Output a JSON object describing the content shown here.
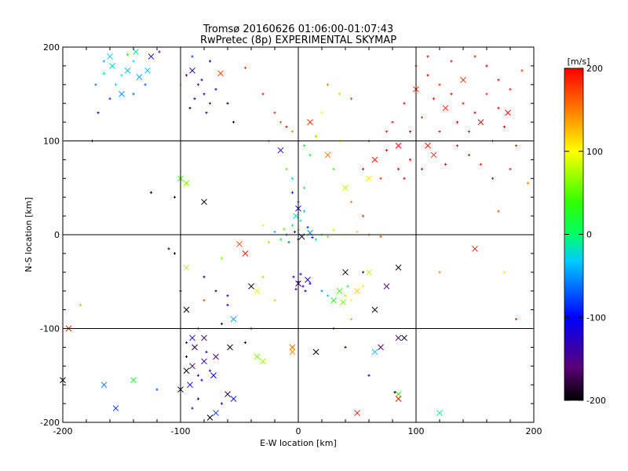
{
  "chart_data": {
    "type": "scatter",
    "title": "Tromsø 20160626 01:06:00-01:07:43",
    "subtitle": "RwPretec (8p) EXPERIMENTAL SKYMAP",
    "xlabel": "E-W location [km]",
    "ylabel": "N-S location [km]",
    "xlim": [
      -200,
      200
    ],
    "ylim": [
      -200,
      200
    ],
    "xticks": [
      "-200",
      "-100",
      "0",
      "100",
      "200"
    ],
    "yticks": [
      "-200",
      "-100",
      "0",
      "100",
      "200"
    ],
    "grid": true,
    "colorbar": {
      "label": "[m/s]",
      "range": [
        -200,
        200
      ],
      "ticks": [
        "-200",
        "-100",
        "0",
        "100",
        "200"
      ]
    },
    "markers": {
      "small": "plus",
      "large": "x"
    },
    "points": [
      [
        -165,
        185,
        -40,
        0
      ],
      [
        -160,
        190,
        -30,
        1
      ],
      [
        -158,
        180,
        -20,
        1
      ],
      [
        -150,
        170,
        -10,
        0
      ],
      [
        -145,
        175,
        -35,
        1
      ],
      [
        -140,
        185,
        -25,
        0
      ],
      [
        -135,
        168,
        -45,
        1
      ],
      [
        -155,
        160,
        -15,
        0
      ],
      [
        -165,
        172,
        -5,
        0
      ],
      [
        -150,
        150,
        -50,
        1
      ],
      [
        -140,
        150,
        -60,
        0
      ],
      [
        -130,
        160,
        -70,
        0
      ],
      [
        -125,
        190,
        -120,
        1
      ],
      [
        -118,
        195,
        -150,
        0
      ],
      [
        -172,
        160,
        -60,
        0
      ],
      [
        -160,
        145,
        -80,
        0
      ],
      [
        -145,
        192,
        40,
        0
      ],
      [
        -170,
        130,
        -100,
        0
      ],
      [
        -128,
        175,
        -30,
        1
      ],
      [
        -138,
        195,
        -10,
        1
      ],
      [
        -90,
        175,
        -140,
        1
      ],
      [
        -85,
        160,
        -160,
        0
      ],
      [
        -80,
        150,
        -130,
        0
      ],
      [
        -75,
        140,
        -120,
        0
      ],
      [
        -88,
        145,
        -170,
        0
      ],
      [
        -82,
        165,
        -180,
        0
      ],
      [
        -70,
        155,
        -110,
        0
      ],
      [
        -95,
        170,
        -150,
        0
      ],
      [
        -78,
        130,
        -140,
        0
      ],
      [
        -66,
        172,
        170,
        1
      ],
      [
        -92,
        135,
        -190,
        0
      ],
      [
        -100,
        160,
        120,
        0
      ],
      [
        -60,
        140,
        -190,
        0
      ],
      [
        -75,
        185,
        -100,
        0
      ],
      [
        -90,
        190,
        -80,
        0
      ],
      [
        -45,
        178,
        180,
        0
      ],
      [
        -55,
        120,
        -200,
        0
      ],
      [
        100,
        180,
        190,
        0
      ],
      [
        110,
        170,
        200,
        0
      ],
      [
        120,
        160,
        180,
        0
      ],
      [
        130,
        150,
        200,
        0
      ],
      [
        140,
        140,
        190,
        0
      ],
      [
        150,
        130,
        200,
        0
      ],
      [
        160,
        150,
        180,
        0
      ],
      [
        170,
        165,
        200,
        0
      ],
      [
        180,
        155,
        190,
        0
      ],
      [
        125,
        135,
        185,
        1
      ],
      [
        135,
        120,
        200,
        0
      ],
      [
        145,
        110,
        190,
        0
      ],
      [
        155,
        120,
        200,
        1
      ],
      [
        165,
        100,
        180,
        0
      ],
      [
        175,
        115,
        200,
        0
      ],
      [
        185,
        95,
        190,
        0
      ],
      [
        115,
        145,
        200,
        0
      ],
      [
        105,
        125,
        180,
        0
      ],
      [
        95,
        110,
        200,
        0
      ],
      [
        85,
        95,
        190,
        1
      ],
      [
        75,
        90,
        200,
        0
      ],
      [
        65,
        80,
        185,
        1
      ],
      [
        55,
        70,
        200,
        0
      ],
      [
        95,
        80,
        190,
        0
      ],
      [
        105,
        70,
        200,
        0
      ],
      [
        115,
        85,
        180,
        1
      ],
      [
        125,
        75,
        200,
        0
      ],
      [
        135,
        95,
        190,
        0
      ],
      [
        145,
        85,
        200,
        0
      ],
      [
        155,
        75,
        180,
        0
      ],
      [
        165,
        60,
        200,
        0
      ],
      [
        180,
        70,
        190,
        0
      ],
      [
        90,
        60,
        200,
        0
      ],
      [
        70,
        60,
        180,
        0
      ],
      [
        60,
        100,
        200,
        0
      ],
      [
        80,
        120,
        190,
        0
      ],
      [
        90,
        140,
        200,
        0
      ],
      [
        100,
        155,
        180,
        1
      ],
      [
        110,
        190,
        200,
        0
      ],
      [
        150,
        190,
        190,
        0
      ],
      [
        160,
        180,
        200,
        0
      ],
      [
        140,
        165,
        185,
        1
      ],
      [
        130,
        185,
        200,
        0
      ],
      [
        190,
        175,
        180,
        0
      ],
      [
        120,
        110,
        195,
        0
      ],
      [
        100,
        100,
        200,
        0
      ],
      [
        110,
        95,
        190,
        1
      ],
      [
        85,
        70,
        200,
        0
      ],
      [
        75,
        110,
        180,
        0
      ],
      [
        170,
        135,
        200,
        0
      ],
      [
        178,
        130,
        195,
        1
      ],
      [
        45,
        145,
        170,
        0
      ],
      [
        35,
        150,
        120,
        0
      ],
      [
        25,
        160,
        150,
        0
      ],
      [
        -20,
        130,
        180,
        0
      ],
      [
        -15,
        120,
        160,
        0
      ],
      [
        -10,
        115,
        200,
        0
      ],
      [
        -5,
        110,
        140,
        0
      ],
      [
        0,
        100,
        80,
        0
      ],
      [
        5,
        95,
        40,
        0
      ],
      [
        10,
        85,
        20,
        0
      ],
      [
        15,
        105,
        60,
        0
      ],
      [
        20,
        130,
        100,
        0
      ],
      [
        -25,
        100,
        170,
        0
      ],
      [
        -30,
        150,
        190,
        0
      ],
      [
        10,
        120,
        180,
        1
      ],
      [
        -15,
        90,
        -130,
        1
      ],
      [
        -5,
        45,
        -90,
        0
      ],
      [
        0,
        35,
        -60,
        0
      ],
      [
        5,
        25,
        -40,
        0
      ],
      [
        -2,
        20,
        -20,
        1
      ],
      [
        2,
        15,
        -10,
        0
      ],
      [
        -5,
        10,
        0,
        0
      ],
      [
        0,
        5,
        20,
        0
      ],
      [
        5,
        0,
        -30,
        0
      ],
      [
        10,
        2,
        -50,
        1
      ],
      [
        -10,
        0,
        -70,
        0
      ],
      [
        -15,
        -5,
        10,
        0
      ],
      [
        15,
        -5,
        -20,
        0
      ],
      [
        20,
        0,
        30,
        0
      ],
      [
        -20,
        3,
        -40,
        0
      ],
      [
        0,
        -5,
        -200,
        0
      ],
      [
        3,
        -2,
        -180,
        1
      ],
      [
        -3,
        3,
        -100,
        0
      ],
      [
        8,
        8,
        -80,
        0
      ],
      [
        -8,
        -8,
        -60,
        0
      ],
      [
        12,
        -3,
        -120,
        0
      ],
      [
        -12,
        6,
        50,
        0
      ],
      [
        25,
        -2,
        60,
        0
      ],
      [
        30,
        5,
        80,
        0
      ],
      [
        40,
        0,
        100,
        0
      ],
      [
        50,
        3,
        120,
        0
      ],
      [
        60,
        0,
        150,
        0
      ],
      [
        70,
        -2,
        170,
        0
      ],
      [
        -25,
        -8,
        70,
        0
      ],
      [
        -30,
        10,
        90,
        0
      ],
      [
        0,
        28,
        -120,
        1
      ],
      [
        -4,
        -45,
        -150,
        0
      ],
      [
        0,
        -50,
        -160,
        0
      ],
      [
        4,
        -55,
        -140,
        0
      ],
      [
        8,
        -48,
        -130,
        1
      ],
      [
        2,
        -42,
        -120,
        0
      ],
      [
        -2,
        -58,
        -170,
        0
      ],
      [
        6,
        -60,
        -110,
        0
      ],
      [
        10,
        -52,
        -100,
        0
      ],
      [
        0,
        -52,
        -150,
        1
      ],
      [
        35,
        -60,
        40,
        1
      ],
      [
        40,
        -65,
        80,
        0
      ],
      [
        45,
        -70,
        100,
        0
      ],
      [
        30,
        -70,
        30,
        1
      ],
      [
        50,
        -60,
        120,
        1
      ],
      [
        38,
        -72,
        60,
        1
      ],
      [
        42,
        -55,
        20,
        0
      ],
      [
        55,
        -55,
        90,
        0
      ],
      [
        25,
        -65,
        -30,
        0
      ],
      [
        20,
        -60,
        -50,
        0
      ],
      [
        40,
        -40,
        -200,
        1
      ],
      [
        55,
        -40,
        -170,
        0
      ],
      [
        60,
        -40,
        80,
        1
      ],
      [
        75,
        -55,
        -160,
        1
      ],
      [
        65,
        -80,
        -190,
        1
      ],
      [
        45,
        -90,
        130,
        0
      ],
      [
        85,
        -35,
        -200,
        1
      ],
      [
        -95,
        -130,
        -190,
        0
      ],
      [
        -90,
        -140,
        -170,
        1
      ],
      [
        -85,
        -150,
        -150,
        0
      ],
      [
        -80,
        -135,
        -130,
        1
      ],
      [
        -75,
        -145,
        -160,
        0
      ],
      [
        -92,
        -160,
        -120,
        1
      ],
      [
        -88,
        -120,
        -180,
        1
      ],
      [
        -82,
        -155,
        -110,
        0
      ],
      [
        -95,
        -145,
        -200,
        1
      ],
      [
        -78,
        -125,
        -140,
        0
      ],
      [
        -72,
        -150,
        -100,
        1
      ],
      [
        -70,
        -130,
        -160,
        1
      ],
      [
        -85,
        -175,
        -190,
        0
      ],
      [
        -100,
        -165,
        -200,
        1
      ],
      [
        -90,
        -185,
        -150,
        0
      ],
      [
        -60,
        -170,
        -180,
        1
      ],
      [
        -65,
        -180,
        -120,
        0
      ],
      [
        -55,
        -175,
        -90,
        1
      ],
      [
        -75,
        -195,
        -200,
        1
      ],
      [
        -58,
        -120,
        -190,
        1
      ],
      [
        -70,
        -190,
        -80,
        1
      ],
      [
        -80,
        -110,
        -170,
        1
      ],
      [
        -85,
        -100,
        -60,
        0
      ],
      [
        -95,
        -80,
        -200,
        1
      ],
      [
        -90,
        -110,
        -110,
        1
      ],
      [
        -65,
        -95,
        -170,
        0
      ],
      [
        -45,
        -115,
        -200,
        0
      ],
      [
        -35,
        -130,
        60,
        1
      ],
      [
        -30,
        -135,
        70,
        1
      ],
      [
        -55,
        -90,
        -50,
        1
      ],
      [
        -165,
        -160,
        -60,
        1
      ],
      [
        -155,
        -185,
        -80,
        1
      ],
      [
        -140,
        -155,
        20,
        1
      ],
      [
        -120,
        -165,
        -70,
        0
      ],
      [
        -200,
        -155,
        -200,
        1
      ],
      [
        -195,
        -100,
        190,
        1
      ],
      [
        -185,
        -75,
        130,
        0
      ],
      [
        65,
        -125,
        -30,
        1
      ],
      [
        70,
        -120,
        -160,
        1
      ],
      [
        85,
        -110,
        -170,
        1
      ],
      [
        90,
        -110,
        -200,
        1
      ],
      [
        85,
        -170,
        30,
        1
      ],
      [
        85,
        -175,
        190,
        1
      ],
      [
        50,
        -190,
        190,
        1
      ],
      [
        120,
        -190,
        -10,
        1
      ],
      [
        82,
        -168,
        -200,
        0
      ],
      [
        60,
        -150,
        -120,
        0
      ],
      [
        40,
        -120,
        -120,
        0
      ],
      [
        30,
        -100,
        -130,
        0
      ],
      [
        -5,
        -120,
        160,
        1
      ],
      [
        -5,
        -125,
        140,
        1
      ],
      [
        15,
        -125,
        -200,
        1
      ],
      [
        -95,
        -115,
        -150,
        0
      ],
      [
        -100,
        60,
        40,
        1
      ],
      [
        -95,
        55,
        60,
        1
      ],
      [
        -80,
        35,
        -200,
        1
      ],
      [
        -125,
        45,
        -200,
        0
      ],
      [
        -175,
        100,
        -190,
        0
      ],
      [
        -105,
        40,
        -200,
        0
      ],
      [
        -110,
        -15,
        -190,
        0
      ],
      [
        -105,
        -20,
        -200,
        0
      ],
      [
        -65,
        -25,
        60,
        0
      ],
      [
        -45,
        -20,
        190,
        1
      ],
      [
        -50,
        -10,
        170,
        1
      ],
      [
        -95,
        -35,
        80,
        1
      ],
      [
        -80,
        -45,
        -170,
        0
      ],
      [
        -70,
        -60,
        -180,
        0
      ],
      [
        -60,
        -75,
        -130,
        0
      ],
      [
        -40,
        -55,
        -190,
        1
      ],
      [
        -35,
        -60,
        90,
        1
      ],
      [
        -80,
        -70,
        170,
        0
      ],
      [
        -100,
        -60,
        -200,
        0
      ],
      [
        -20,
        -70,
        120,
        0
      ],
      [
        -30,
        -45,
        60,
        0
      ],
      [
        150,
        -15,
        190,
        1
      ],
      [
        120,
        -40,
        150,
        0
      ],
      [
        175,
        -40,
        110,
        0
      ],
      [
        185,
        -90,
        180,
        0
      ],
      [
        195,
        55,
        150,
        0
      ],
      [
        170,
        25,
        170,
        0
      ],
      [
        55,
        20,
        180,
        0
      ],
      [
        45,
        35,
        150,
        0
      ],
      [
        40,
        50,
        80,
        1
      ],
      [
        60,
        60,
        110,
        1
      ],
      [
        30,
        70,
        40,
        0
      ],
      [
        -5,
        60,
        -30,
        0
      ],
      [
        5,
        50,
        20,
        0
      ],
      [
        -10,
        70,
        50,
        0
      ],
      [
        25,
        85,
        150,
        1
      ],
      [
        35,
        100,
        100,
        0
      ],
      [
        -40,
        -100,
        -90,
        0
      ],
      [
        -60,
        -65,
        -120,
        0
      ]
    ]
  }
}
